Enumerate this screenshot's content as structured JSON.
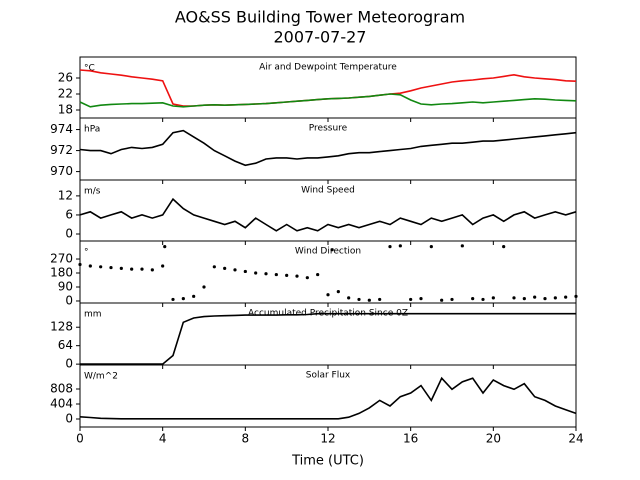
{
  "title": "AO&SS Building Tower Meteorogram",
  "subtitle": "2007-07-27",
  "chart_data": [
    {
      "type": "line",
      "title": "Air and Dewpoint Temperature",
      "unit_label": "°C",
      "x": [
        0,
        0.5,
        1,
        1.5,
        2,
        2.5,
        3,
        3.5,
        4,
        4.5,
        5,
        5.5,
        6,
        6.5,
        7,
        7.5,
        8,
        8.5,
        9,
        9.5,
        10,
        10.5,
        11,
        11.5,
        12,
        12.5,
        13,
        13.5,
        14,
        14.5,
        15,
        15.5,
        16,
        16.5,
        17,
        17.5,
        18,
        18.5,
        19,
        19.5,
        20,
        20.5,
        21,
        21.5,
        22,
        22.5,
        23,
        23.5,
        24
      ],
      "series": [
        {
          "name": "Air Temperature",
          "color": "#ee1111",
          "values": [
            28,
            27.8,
            27.3,
            27,
            26.7,
            26.3,
            26,
            25.7,
            25.3,
            19.5,
            19,
            19,
            19.2,
            19.3,
            19.2,
            19.3,
            19.4,
            19.5,
            19.6,
            19.8,
            20,
            20.2,
            20.4,
            20.6,
            20.8,
            20.9,
            21,
            21.2,
            21.4,
            21.7,
            22,
            22.2,
            22.8,
            23.5,
            24,
            24.5,
            25,
            25.3,
            25.5,
            25.8,
            26,
            26.4,
            26.8,
            26.3,
            26,
            25.8,
            25.6,
            25.3,
            25.2
          ]
        },
        {
          "name": "Dewpoint",
          "color": "#118811",
          "values": [
            20,
            18.8,
            19.2,
            19.4,
            19.5,
            19.6,
            19.6,
            19.7,
            19.8,
            19,
            18.8,
            19,
            19.2,
            19.3,
            19.2,
            19.3,
            19.4,
            19.5,
            19.6,
            19.8,
            20,
            20.2,
            20.4,
            20.6,
            20.8,
            20.9,
            21,
            21.2,
            21.4,
            21.7,
            22,
            21.8,
            20.5,
            19.5,
            19.3,
            19.5,
            19.6,
            19.8,
            20,
            19.8,
            20,
            20.2,
            20.4,
            20.6,
            20.8,
            20.7,
            20.5,
            20.4,
            20.3
          ]
        }
      ],
      "xlim": [
        0,
        24
      ],
      "xticks": [
        0,
        4,
        8,
        12,
        16,
        20,
        24
      ],
      "ylim": [
        16,
        31.25
      ],
      "yticks": [
        18,
        22,
        26
      ]
    },
    {
      "type": "line",
      "title": "Pressure",
      "unit_label": "hPa",
      "x": [
        0,
        0.5,
        1,
        1.5,
        2,
        2.5,
        3,
        3.5,
        4,
        4.5,
        5,
        5.5,
        6,
        6.5,
        7,
        7.5,
        8,
        8.5,
        9,
        9.5,
        10,
        10.5,
        11,
        11.5,
        12,
        12.5,
        13,
        13.5,
        14,
        14.5,
        15,
        15.5,
        16,
        16.5,
        17,
        17.5,
        18,
        18.5,
        19,
        19.5,
        20,
        20.5,
        21,
        21.5,
        22,
        22.5,
        23,
        23.5,
        24
      ],
      "series": [
        {
          "name": "Pressure",
          "color": "#000000",
          "values": [
            972.1,
            972,
            972,
            971.7,
            972.1,
            972.3,
            972.2,
            972.3,
            972.6,
            973.7,
            973.9,
            973.3,
            972.7,
            972,
            971.5,
            971,
            970.6,
            970.8,
            971.2,
            971.3,
            971.3,
            971.2,
            971.3,
            971.3,
            971.4,
            971.5,
            971.7,
            971.8,
            971.8,
            971.9,
            972,
            972.1,
            972.2,
            972.4,
            972.5,
            972.6,
            972.7,
            972.7,
            972.8,
            972.9,
            972.9,
            973,
            973.1,
            973.2,
            973.3,
            973.4,
            973.5,
            973.6,
            973.7
          ]
        }
      ],
      "xlim": [
        0,
        24
      ],
      "xticks": [
        0,
        4,
        8,
        12,
        16,
        20,
        24
      ],
      "ylim": [
        969.2,
        975.1
      ],
      "yticks": [
        970,
        972,
        974
      ]
    },
    {
      "type": "line",
      "title": "Wind Speed",
      "unit_label": "m/s",
      "x": [
        0,
        0.5,
        1,
        1.5,
        2,
        2.5,
        3,
        3.5,
        4,
        4.5,
        5,
        5.5,
        6,
        6.5,
        7,
        7.5,
        8,
        8.5,
        9,
        9.5,
        10,
        10.5,
        11,
        11.5,
        12,
        12.5,
        13,
        13.5,
        14,
        14.5,
        15,
        15.5,
        16,
        16.5,
        17,
        17.5,
        18,
        18.5,
        19,
        19.5,
        20,
        20.5,
        21,
        21.5,
        22,
        22.5,
        23,
        23.5,
        24
      ],
      "series": [
        {
          "name": "Wind Speed",
          "color": "#000000",
          "values": [
            6,
            7,
            5,
            6,
            7,
            5,
            6,
            5,
            6,
            11,
            8,
            6,
            5,
            4,
            3,
            4,
            2,
            5,
            3,
            1,
            3,
            1,
            2,
            1,
            3,
            2,
            3,
            2,
            3,
            4,
            3,
            5,
            4,
            3,
            5,
            4,
            5,
            6,
            3,
            5,
            6,
            4,
            6,
            7,
            5,
            6,
            7,
            6,
            7
          ]
        }
      ],
      "xlim": [
        0,
        24
      ],
      "xticks": [
        0,
        4,
        8,
        12,
        16,
        20,
        24
      ],
      "ylim": [
        -2.2,
        17
      ],
      "yticks": [
        0,
        6,
        12
      ]
    },
    {
      "type": "scatter",
      "title": "Wind Direction",
      "unit_label": "°",
      "x": [
        0,
        0.5,
        1,
        1.5,
        2,
        2.5,
        3,
        3.5,
        4,
        4.1,
        4.5,
        5,
        5.5,
        6,
        6.5,
        7,
        7.5,
        8,
        8.5,
        9,
        9.5,
        10,
        10.5,
        11,
        11.5,
        12,
        12.2,
        12.5,
        13,
        13.5,
        14,
        14.5,
        15,
        15.5,
        16,
        16.5,
        17,
        17.5,
        18,
        18.5,
        19,
        19.5,
        20,
        20.5,
        21,
        21.5,
        22,
        22.5,
        23,
        23.5,
        24
      ],
      "series": [
        {
          "name": "Wind Direction",
          "color": "#000000",
          "values": [
            235,
            225,
            220,
            215,
            210,
            205,
            205,
            200,
            225,
            350,
            10,
            15,
            30,
            90,
            220,
            210,
            200,
            190,
            180,
            175,
            170,
            165,
            160,
            150,
            170,
            40,
            330,
            60,
            20,
            10,
            5,
            10,
            350,
            355,
            10,
            15,
            350,
            5,
            10,
            355,
            15,
            10,
            20,
            350,
            20,
            15,
            25,
            15,
            20,
            25,
            30
          ]
        }
      ],
      "xlim": [
        0,
        24
      ],
      "xticks": [
        0,
        4,
        8,
        12,
        16,
        20,
        24
      ],
      "ylim": [
        -13,
        386
      ],
      "yticks": [
        0,
        90,
        180,
        270
      ]
    },
    {
      "type": "line",
      "title": "Accumulated Precipitation Since 0Z",
      "unit_label": "mm",
      "x": [
        0,
        0.5,
        1,
        1.5,
        2,
        2.5,
        3,
        3.5,
        4,
        4.5,
        5,
        5.5,
        6,
        6.5,
        7,
        7.5,
        8,
        8.5,
        9,
        9.5,
        10,
        10.5,
        11,
        11.5,
        12,
        12.5,
        13,
        13.5,
        14,
        14.5,
        15,
        15.5,
        16,
        16.5,
        17,
        17.5,
        18,
        18.5,
        19,
        19.5,
        20,
        20.5,
        21,
        21.5,
        22,
        22.5,
        23,
        23.5,
        24
      ],
      "series": [
        {
          "name": "Precipitation",
          "color": "#000000",
          "values": [
            0,
            0,
            0,
            0,
            0,
            0,
            0,
            0,
            0,
            30,
            145,
            160,
            165,
            167,
            168,
            169,
            170,
            170,
            170,
            170,
            171,
            171,
            172,
            175,
            175,
            175,
            175,
            175,
            175,
            175,
            175,
            175,
            175,
            175,
            175,
            175,
            175,
            175,
            175,
            175,
            175,
            175,
            175,
            175,
            175,
            175,
            175,
            175,
            175
          ]
        }
      ],
      "xlim": [
        0,
        24
      ],
      "xticks": [
        0,
        4,
        8,
        12,
        16,
        20,
        24
      ],
      "ylim": [
        -3,
        212
      ],
      "yticks": [
        0,
        64,
        128
      ]
    },
    {
      "type": "line",
      "title": "Solar Flux",
      "unit_label": "W/m^2",
      "xlabel": "Time (UTC)",
      "x": [
        0,
        0.5,
        1,
        1.5,
        2,
        2.5,
        3,
        3.5,
        4,
        4.5,
        5,
        5.5,
        6,
        6.5,
        7,
        7.5,
        8,
        8.5,
        9,
        9.5,
        10,
        10.5,
        11,
        11.5,
        12,
        12.5,
        13,
        13.5,
        14,
        14.5,
        15,
        15.5,
        16,
        16.5,
        17,
        17.5,
        18,
        18.5,
        19,
        19.5,
        20,
        20.5,
        21,
        21.5,
        22,
        22.5,
        23,
        23.5,
        24
      ],
      "series": [
        {
          "name": "Solar Flux",
          "color": "#000000",
          "values": [
            60,
            40,
            20,
            10,
            5,
            5,
            5,
            5,
            5,
            5,
            5,
            5,
            5,
            5,
            5,
            5,
            5,
            5,
            5,
            5,
            5,
            5,
            5,
            5,
            5,
            5,
            50,
            150,
            300,
            500,
            350,
            600,
            700,
            900,
            500,
            1100,
            800,
            1000,
            1100,
            700,
            1050,
            900,
            800,
            950,
            600,
            500,
            350,
            250,
            150
          ]
        }
      ],
      "xlim": [
        0,
        24
      ],
      "xticks": [
        0,
        4,
        8,
        12,
        16,
        20,
        24
      ],
      "ylim": [
        -215,
        1454
      ],
      "yticks": [
        0,
        404,
        808
      ]
    }
  ]
}
